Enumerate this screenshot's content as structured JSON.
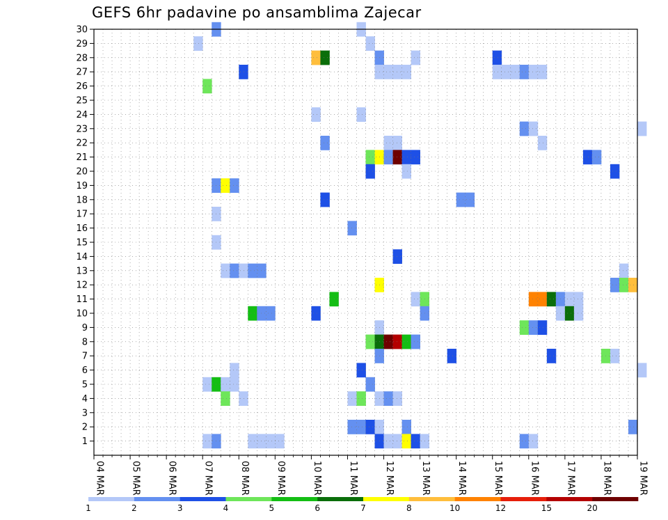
{
  "chart_data": {
    "type": "heatmap",
    "title": "GEFS 6hr padavine po ansamblima Zajecar",
    "x_tick_labels": [
      "04 MAR",
      "05 MAR",
      "06 MAR",
      "07 MAR",
      "08 MAR",
      "09 MAR",
      "10 MAR",
      "11 MAR",
      "12 MAR",
      "13 MAR",
      "14 MAR",
      "15 MAR",
      "16 MAR",
      "17 MAR",
      "18 MAR",
      "19 MAR"
    ],
    "y_tick_labels": [
      "1",
      "2",
      "3",
      "4",
      "5",
      "6",
      "7",
      "8",
      "9",
      "10",
      "11",
      "12",
      "13",
      "14",
      "15",
      "16",
      "17",
      "18",
      "19",
      "20",
      "21",
      "22",
      "23",
      "24",
      "25",
      "26",
      "27",
      "28",
      "29",
      "30"
    ],
    "ylim": [
      0,
      30
    ],
    "grid": true,
    "legend": {
      "placement": "bottom",
      "colors": [
        "#b4c8f8",
        "#6490f0",
        "#1e50e6",
        "#6ee65a",
        "#14be14",
        "#0a6e0a",
        "#ffff00",
        "#ffbe3c",
        "#ff8200",
        "#e61e0a",
        "#b40000",
        "#6e0000"
      ],
      "labels": [
        "1",
        "2",
        "3",
        "4",
        "5",
        "6",
        "7",
        "8",
        "10",
        "12",
        "15",
        "20"
      ]
    },
    "colors": {
      "p1": "#b4c8f8",
      "p2": "#6490f0",
      "p3": "#1e50e6",
      "p4": "#6ee65a",
      "p5": "#14be14",
      "p6": "#0a6e0a",
      "p7": "#ffff00",
      "p8": "#ffbe3c",
      "p10": "#ff8200",
      "p12": "#e61e0a",
      "p15": "#b40000",
      "p20": "#6e0000"
    },
    "cells": [
      {
        "day": 3.25,
        "member": 30,
        "value": 2
      },
      {
        "day": 7.25,
        "member": 30,
        "value": 1
      },
      {
        "day": 2.75,
        "member": 29,
        "value": 1
      },
      {
        "day": 7.5,
        "member": 29,
        "value": 1
      },
      {
        "day": 6.0,
        "member": 28,
        "value": 8
      },
      {
        "day": 6.25,
        "member": 28,
        "value": 6
      },
      {
        "day": 7.75,
        "member": 28,
        "value": 2
      },
      {
        "day": 8.75,
        "member": 28,
        "value": 1
      },
      {
        "day": 11.0,
        "member": 28,
        "value": 3
      },
      {
        "day": 4.0,
        "member": 27,
        "value": 3
      },
      {
        "day": 7.75,
        "member": 27,
        "value": 1
      },
      {
        "day": 8.0,
        "member": 27,
        "value": 1
      },
      {
        "day": 8.25,
        "member": 27,
        "value": 1
      },
      {
        "day": 8.5,
        "member": 27,
        "value": 1
      },
      {
        "day": 11.0,
        "member": 27,
        "value": 1
      },
      {
        "day": 11.25,
        "member": 27,
        "value": 1
      },
      {
        "day": 11.5,
        "member": 27,
        "value": 1
      },
      {
        "day": 11.75,
        "member": 27,
        "value": 2
      },
      {
        "day": 12.0,
        "member": 27,
        "value": 1
      },
      {
        "day": 12.25,
        "member": 27,
        "value": 1
      },
      {
        "day": 3.0,
        "member": 26,
        "value": 4
      },
      {
        "day": 6.0,
        "member": 24,
        "value": 1
      },
      {
        "day": 7.25,
        "member": 24,
        "value": 1
      },
      {
        "day": 11.75,
        "member": 23,
        "value": 2
      },
      {
        "day": 12.0,
        "member": 23,
        "value": 1
      },
      {
        "day": 15.0,
        "member": 23,
        "value": 1
      },
      {
        "day": 6.25,
        "member": 22,
        "value": 2
      },
      {
        "day": 8.0,
        "member": 22,
        "value": 1
      },
      {
        "day": 8.25,
        "member": 22,
        "value": 1
      },
      {
        "day": 12.25,
        "member": 22,
        "value": 1
      },
      {
        "day": 7.5,
        "member": 21,
        "value": 4
      },
      {
        "day": 7.75,
        "member": 21,
        "value": 7
      },
      {
        "day": 8.0,
        "member": 21,
        "value": 2
      },
      {
        "day": 8.25,
        "member": 21,
        "value": 20
      },
      {
        "day": 8.5,
        "member": 21,
        "value": 3
      },
      {
        "day": 8.75,
        "member": 21,
        "value": 3
      },
      {
        "day": 13.5,
        "member": 21,
        "value": 3
      },
      {
        "day": 13.75,
        "member": 21,
        "value": 2
      },
      {
        "day": 7.5,
        "member": 20,
        "value": 3
      },
      {
        "day": 8.5,
        "member": 20,
        "value": 1
      },
      {
        "day": 14.25,
        "member": 20,
        "value": 3
      },
      {
        "day": 3.25,
        "member": 19,
        "value": 2
      },
      {
        "day": 3.5,
        "member": 19,
        "value": 7
      },
      {
        "day": 3.75,
        "member": 19,
        "value": 2
      },
      {
        "day": 6.25,
        "member": 18,
        "value": 3
      },
      {
        "day": 10.0,
        "member": 18,
        "value": 2
      },
      {
        "day": 10.25,
        "member": 18,
        "value": 2
      },
      {
        "day": 3.25,
        "member": 17,
        "value": 1
      },
      {
        "day": 7.0,
        "member": 16,
        "value": 2
      },
      {
        "day": 3.25,
        "member": 15,
        "value": 1
      },
      {
        "day": 8.25,
        "member": 14,
        "value": 3
      },
      {
        "day": 3.5,
        "member": 13,
        "value": 1
      },
      {
        "day": 3.75,
        "member": 13,
        "value": 2
      },
      {
        "day": 4.0,
        "member": 13,
        "value": 1
      },
      {
        "day": 4.25,
        "member": 13,
        "value": 2
      },
      {
        "day": 4.5,
        "member": 13,
        "value": 2
      },
      {
        "day": 14.5,
        "member": 13,
        "value": 1
      },
      {
        "day": 7.75,
        "member": 12,
        "value": 7
      },
      {
        "day": 14.25,
        "member": 12,
        "value": 2
      },
      {
        "day": 14.5,
        "member": 12,
        "value": 4
      },
      {
        "day": 14.75,
        "member": 12,
        "value": 8
      },
      {
        "day": 6.5,
        "member": 11,
        "value": 5
      },
      {
        "day": 8.75,
        "member": 11,
        "value": 1
      },
      {
        "day": 9.0,
        "member": 11,
        "value": 4
      },
      {
        "day": 12.0,
        "member": 11,
        "value": 10
      },
      {
        "day": 12.25,
        "member": 11,
        "value": 10
      },
      {
        "day": 12.5,
        "member": 11,
        "value": 6
      },
      {
        "day": 12.75,
        "member": 11,
        "value": 2
      },
      {
        "day": 13.0,
        "member": 11,
        "value": 1
      },
      {
        "day": 13.25,
        "member": 11,
        "value": 1
      },
      {
        "day": 4.25,
        "member": 10,
        "value": 5
      },
      {
        "day": 4.5,
        "member": 10,
        "value": 2
      },
      {
        "day": 4.75,
        "member": 10,
        "value": 2
      },
      {
        "day": 6.0,
        "member": 10,
        "value": 3
      },
      {
        "day": 9.0,
        "member": 10,
        "value": 2
      },
      {
        "day": 12.75,
        "member": 10,
        "value": 1
      },
      {
        "day": 13.0,
        "member": 10,
        "value": 6
      },
      {
        "day": 13.25,
        "member": 10,
        "value": 1
      },
      {
        "day": 7.75,
        "member": 9,
        "value": 1
      },
      {
        "day": 11.75,
        "member": 9,
        "value": 4
      },
      {
        "day": 12.0,
        "member": 9,
        "value": 2
      },
      {
        "day": 12.25,
        "member": 9,
        "value": 3
      },
      {
        "day": 7.5,
        "member": 8,
        "value": 4
      },
      {
        "day": 7.75,
        "member": 8,
        "value": 6
      },
      {
        "day": 8.0,
        "member": 8,
        "value": 20
      },
      {
        "day": 8.25,
        "member": 8,
        "value": 15
      },
      {
        "day": 8.5,
        "member": 8,
        "value": 5
      },
      {
        "day": 8.75,
        "member": 8,
        "value": 2
      },
      {
        "day": 7.75,
        "member": 7,
        "value": 2
      },
      {
        "day": 9.75,
        "member": 7,
        "value": 3
      },
      {
        "day": 12.5,
        "member": 7,
        "value": 3
      },
      {
        "day": 14.0,
        "member": 7,
        "value": 4
      },
      {
        "day": 14.25,
        "member": 7,
        "value": 1
      },
      {
        "day": 3.75,
        "member": 6,
        "value": 1
      },
      {
        "day": 7.25,
        "member": 6,
        "value": 3
      },
      {
        "day": 15.0,
        "member": 6,
        "value": 1
      },
      {
        "day": 3.0,
        "member": 5,
        "value": 1
      },
      {
        "day": 3.25,
        "member": 5,
        "value": 5
      },
      {
        "day": 3.5,
        "member": 5,
        "value": 1
      },
      {
        "day": 3.75,
        "member": 5,
        "value": 1
      },
      {
        "day": 7.5,
        "member": 5,
        "value": 2
      },
      {
        "day": 3.5,
        "member": 4,
        "value": 4
      },
      {
        "day": 4.0,
        "member": 4,
        "value": 1
      },
      {
        "day": 7.0,
        "member": 4,
        "value": 1
      },
      {
        "day": 7.25,
        "member": 4,
        "value": 4
      },
      {
        "day": 7.75,
        "member": 4,
        "value": 1
      },
      {
        "day": 8.0,
        "member": 4,
        "value": 2
      },
      {
        "day": 8.25,
        "member": 4,
        "value": 1
      },
      {
        "day": 7.0,
        "member": 2,
        "value": 2
      },
      {
        "day": 7.25,
        "member": 2,
        "value": 2
      },
      {
        "day": 7.5,
        "member": 2,
        "value": 3
      },
      {
        "day": 7.75,
        "member": 2,
        "value": 1
      },
      {
        "day": 8.5,
        "member": 2,
        "value": 2
      },
      {
        "day": 14.75,
        "member": 2,
        "value": 2
      },
      {
        "day": 3.0,
        "member": 1,
        "value": 1
      },
      {
        "day": 3.25,
        "member": 1,
        "value": 2
      },
      {
        "day": 4.25,
        "member": 1,
        "value": 1
      },
      {
        "day": 4.5,
        "member": 1,
        "value": 1
      },
      {
        "day": 4.75,
        "member": 1,
        "value": 1
      },
      {
        "day": 5.0,
        "member": 1,
        "value": 1
      },
      {
        "day": 7.75,
        "member": 1,
        "value": 3
      },
      {
        "day": 8.0,
        "member": 1,
        "value": 1
      },
      {
        "day": 8.25,
        "member": 1,
        "value": 1
      },
      {
        "day": 8.5,
        "member": 1,
        "value": 7
      },
      {
        "day": 8.75,
        "member": 1,
        "value": 3
      },
      {
        "day": 9.0,
        "member": 1,
        "value": 1
      },
      {
        "day": 11.75,
        "member": 1,
        "value": 2
      },
      {
        "day": 12.0,
        "member": 1,
        "value": 1
      }
    ]
  }
}
